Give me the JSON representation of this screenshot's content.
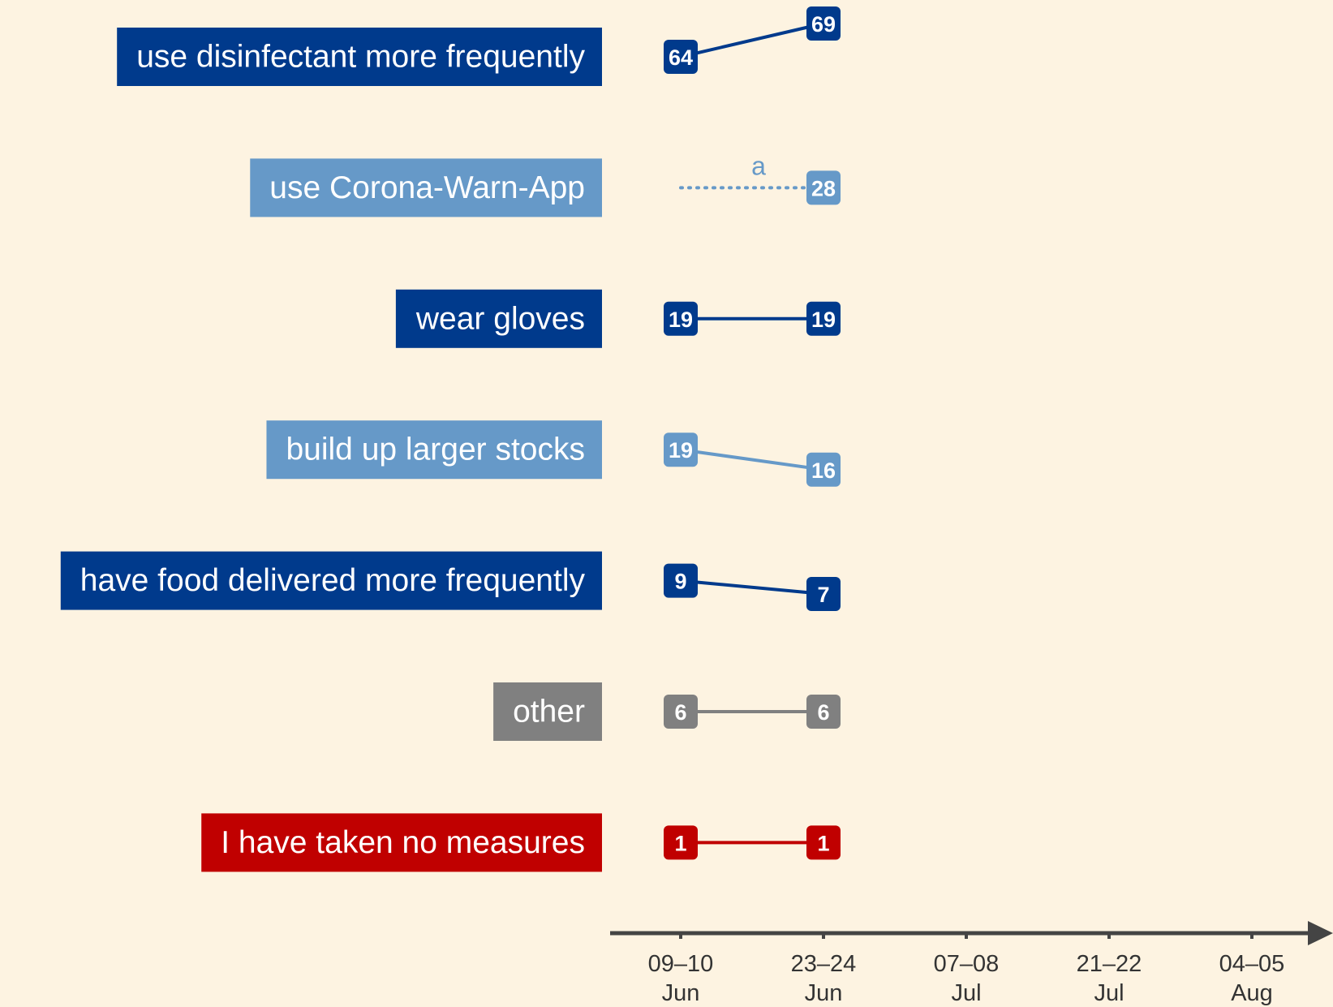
{
  "chart_data": {
    "type": "slope",
    "x": [
      [
        "09–10",
        "Jun"
      ],
      [
        "23–24",
        "Jun"
      ],
      [
        "07–08",
        "Jul"
      ],
      [
        "21–22",
        "Jul"
      ],
      [
        "04–05",
        "Aug"
      ]
    ],
    "series": [
      {
        "name": "use disinfectant more frequently",
        "color": "#003a8c",
        "values": [
          64,
          69,
          null,
          null,
          null
        ]
      },
      {
        "name": "use Corona-Warn-App",
        "color": "#6699c8",
        "values": [
          null,
          28,
          null,
          null,
          null
        ],
        "line_style": "dotted",
        "annotation": "a"
      },
      {
        "name": "wear gloves",
        "color": "#003a8c",
        "values": [
          19,
          19,
          null,
          null,
          null
        ]
      },
      {
        "name": "build up larger stocks",
        "color": "#6699c8",
        "values": [
          19,
          16,
          null,
          null,
          null
        ]
      },
      {
        "name": "have food delivered more frequently",
        "color": "#003a8c",
        "values": [
          9,
          7,
          null,
          null,
          null
        ]
      },
      {
        "name": "other",
        "color": "#808080",
        "values": [
          6,
          6,
          null,
          null,
          null
        ]
      },
      {
        "name": "I have taken no measures",
        "color": "#c00000",
        "values": [
          1,
          1,
          null,
          null,
          null
        ]
      }
    ]
  }
}
